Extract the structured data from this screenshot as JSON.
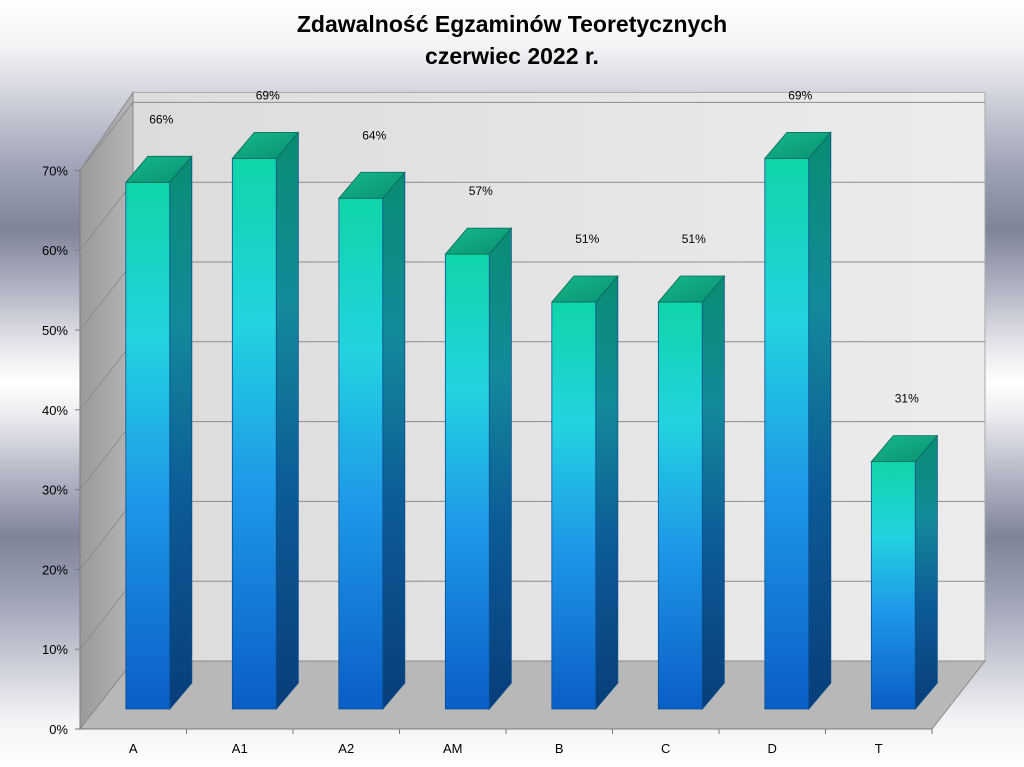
{
  "chart_data": {
    "type": "bar",
    "title": "Zdawalność Egzaminów Teoretycznych",
    "subtitle": "czerwiec 2022 r.",
    "categories": [
      "A",
      "A1",
      "A2",
      "AM",
      "B",
      "C",
      "D",
      "T"
    ],
    "values": [
      66,
      69,
      64,
      57,
      51,
      51,
      69,
      31
    ],
    "value_labels": [
      "66%",
      "69%",
      "64%",
      "57%",
      "51%",
      "51%",
      "69%",
      "31%"
    ],
    "y_ticks": [
      "0%",
      "10%",
      "20%",
      "30%",
      "40%",
      "50%",
      "60%",
      "70%"
    ],
    "ylim": [
      0,
      70
    ],
    "xlabel": "",
    "ylabel": "",
    "grid": true,
    "legend": "none",
    "style": "3d-cylinder-gradient",
    "colors": {
      "bar_top": "#0fd5a8",
      "bar_mid": "#22d3e0",
      "bar_low": "#1e8ee6",
      "bar_bottom": "#0a62c9",
      "bar_side": "#0b5e8c",
      "wall": "#e6e6e6",
      "floor": "#b8b8b8",
      "grid": "#8c8c8c"
    }
  }
}
